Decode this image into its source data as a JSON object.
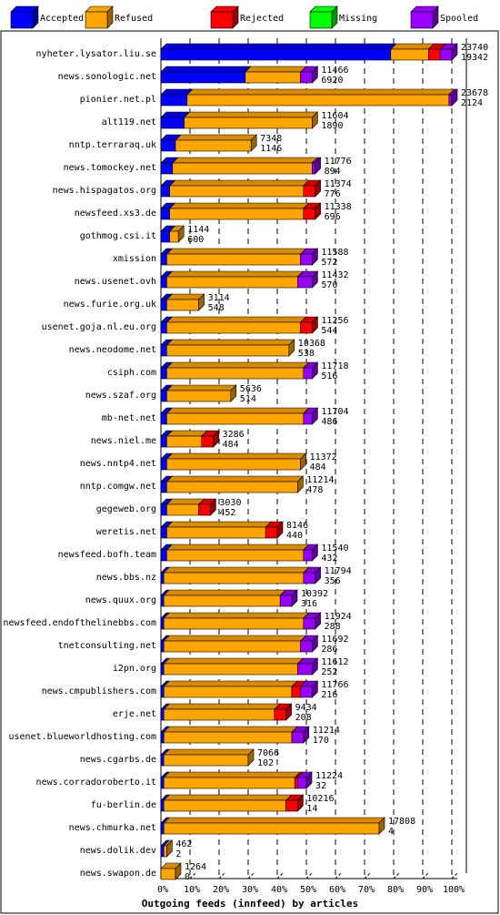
{
  "chart_data": {
    "type": "bar",
    "orientation": "horizontal",
    "stacked": true,
    "title": "",
    "xlabel": "Outgoing feeds (innfeed) by articles",
    "ylabel": "",
    "xlim": [
      0,
      100
    ],
    "x_unit": "%",
    "ticks": [
      "0%",
      "10%",
      "20%",
      "30%",
      "40%",
      "50%",
      "60%",
      "70%",
      "80%",
      "90%",
      "100%"
    ],
    "legend_position": "top",
    "series": [
      {
        "name": "Accepted",
        "color": "#0000ff"
      },
      {
        "name": "Refused",
        "color": "#ffa500"
      },
      {
        "name": "Rejected",
        "color": "#ff0000"
      },
      {
        "name": "Missing",
        "color": "#00ff00"
      },
      {
        "name": "Spooled",
        "color": "#9900ff"
      }
    ],
    "rows": [
      {
        "name": "nyheter.lysator.liu.se",
        "total": "23740",
        "accepted": "19342",
        "pct": [
          79,
          13,
          4,
          0,
          4
        ]
      },
      {
        "name": "news.sonologic.net",
        "total": "11466",
        "accepted": "6920",
        "pct": [
          29,
          19,
          0,
          0,
          4
        ]
      },
      {
        "name": "pionier.net.pl",
        "total": "23678",
        "accepted": "2124",
        "pct": [
          9,
          90,
          0,
          0,
          1
        ]
      },
      {
        "name": "alt119.net",
        "total": "11604",
        "accepted": "1890",
        "pct": [
          8,
          44,
          0,
          0,
          0
        ]
      },
      {
        "name": "nntp.terraraq.uk",
        "total": "7348",
        "accepted": "1146",
        "pct": [
          5,
          26,
          0,
          0,
          0
        ]
      },
      {
        "name": "news.tomockey.net",
        "total": "11776",
        "accepted": "894",
        "pct": [
          4,
          48,
          0,
          0,
          1
        ]
      },
      {
        "name": "news.hispagatos.org",
        "total": "11374",
        "accepted": "776",
        "pct": [
          3,
          46,
          4,
          0,
          0
        ]
      },
      {
        "name": "newsfeed.xs3.de",
        "total": "11338",
        "accepted": "696",
        "pct": [
          3,
          46,
          4,
          0,
          0
        ]
      },
      {
        "name": "gothmog.csi.it",
        "total": "1144",
        "accepted": "600",
        "pct": [
          3,
          3,
          0,
          0,
          0
        ]
      },
      {
        "name": "xmission",
        "total": "11588",
        "accepted": "572",
        "pct": [
          2,
          46,
          0,
          0,
          4
        ]
      },
      {
        "name": "news.usenet.ovh",
        "total": "11432",
        "accepted": "570",
        "pct": [
          2,
          45,
          0,
          0,
          5
        ]
      },
      {
        "name": "news.furie.org.uk",
        "total": "3114",
        "accepted": "548",
        "pct": [
          2,
          11,
          0,
          0,
          0
        ]
      },
      {
        "name": "usenet.goja.nl.eu.org",
        "total": "11256",
        "accepted": "544",
        "pct": [
          2,
          46,
          4,
          0,
          0
        ]
      },
      {
        "name": "news.neodome.net",
        "total": "10368",
        "accepted": "538",
        "pct": [
          2,
          42,
          0,
          0,
          0
        ]
      },
      {
        "name": "csiph.com",
        "total": "11718",
        "accepted": "516",
        "pct": [
          2,
          47,
          0,
          0,
          3
        ]
      },
      {
        "name": "news.szaf.org",
        "total": "5636",
        "accepted": "514",
        "pct": [
          2,
          22,
          0,
          0,
          0
        ]
      },
      {
        "name": "mb-net.net",
        "total": "11704",
        "accepted": "486",
        "pct": [
          2,
          47,
          0,
          0,
          3
        ]
      },
      {
        "name": "news.niel.me",
        "total": "3286",
        "accepted": "484",
        "pct": [
          2,
          12,
          4,
          0,
          0
        ]
      },
      {
        "name": "news.nntp4.net",
        "total": "11372",
        "accepted": "484",
        "pct": [
          2,
          46,
          0,
          0,
          0
        ]
      },
      {
        "name": "nntp.comgw.net",
        "total": "11214",
        "accepted": "478",
        "pct": [
          2,
          45,
          0,
          0,
          0
        ]
      },
      {
        "name": "gegeweb.org",
        "total": "3030",
        "accepted": "452",
        "pct": [
          2,
          11,
          4,
          0,
          0
        ]
      },
      {
        "name": "weretis.net",
        "total": "8146",
        "accepted": "440",
        "pct": [
          2,
          34,
          4,
          0,
          0
        ]
      },
      {
        "name": "newsfeed.bofh.team",
        "total": "11540",
        "accepted": "432",
        "pct": [
          2,
          47,
          0,
          0,
          3
        ]
      },
      {
        "name": "news.bbs.nz",
        "total": "11794",
        "accepted": "356",
        "pct": [
          1,
          48,
          0,
          0,
          4
        ]
      },
      {
        "name": "news.quux.org",
        "total": "10392",
        "accepted": "316",
        "pct": [
          1,
          40,
          0,
          0,
          4
        ]
      },
      {
        "name": "newsfeed.endofthelinebbs.com",
        "total": "11924",
        "accepted": "288",
        "pct": [
          1,
          48,
          0,
          0,
          4
        ]
      },
      {
        "name": "tnetconsulting.net",
        "total": "11692",
        "accepted": "286",
        "pct": [
          1,
          47,
          0,
          0,
          4
        ]
      },
      {
        "name": "i2pn.org",
        "total": "11612",
        "accepted": "252",
        "pct": [
          1,
          46,
          0,
          0,
          5
        ]
      },
      {
        "name": "news.cmpublishers.com",
        "total": "11766",
        "accepted": "216",
        "pct": [
          1,
          44,
          3,
          0,
          4
        ]
      },
      {
        "name": "erje.net",
        "total": "9434",
        "accepted": "208",
        "pct": [
          1,
          38,
          4,
          0,
          0
        ]
      },
      {
        "name": "usenet.blueworldhosting.com",
        "total": "11214",
        "accepted": "170",
        "pct": [
          1,
          44,
          0,
          0,
          4
        ]
      },
      {
        "name": "news.cgarbs.de",
        "total": "7066",
        "accepted": "102",
        "pct": [
          1,
          29,
          0,
          0,
          0
        ]
      },
      {
        "name": "news.corradoroberto.it",
        "total": "11224",
        "accepted": "32",
        "pct": [
          1,
          45,
          1,
          0,
          3
        ]
      },
      {
        "name": "fu-berlin.de",
        "total": "10216",
        "accepted": "14",
        "pct": [
          1,
          42,
          4,
          0,
          0
        ]
      },
      {
        "name": "news.chmurka.net",
        "total": "17808",
        "accepted": "4",
        "pct": [
          1,
          74,
          0,
          0,
          0
        ]
      },
      {
        "name": "news.dolik.dev",
        "total": "462",
        "accepted": "2",
        "pct": [
          1,
          1,
          0,
          0,
          0
        ]
      },
      {
        "name": "news.swapon.de",
        "total": "1264",
        "accepted": "0",
        "pct": [
          0,
          5,
          0,
          0,
          0
        ]
      }
    ]
  }
}
